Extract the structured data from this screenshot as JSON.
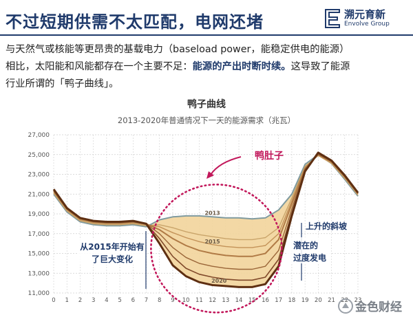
{
  "header": {
    "headline": "不过短期供需不太匹配，电网还堵",
    "brand_cn": "溯元育新",
    "brand_en": "Envolve Group"
  },
  "paragraph": {
    "line1": "与天然气或核能等更昂贵的基载电力（baseload  power，能稳定供电的能源）",
    "line2_a": "相比，太阳能和风能都存在一个主要不足：",
    "line2_em": "能源的产出时断时续。",
    "line2_b": "这导致了能源",
    "line3": "行业所谓的「鸭子曲线」。"
  },
  "footer": {
    "watermark": "金色财经"
  },
  "colors": {
    "headline": "#1f3a6b",
    "fill_band": "#f2d49b",
    "line_2020": "#5e2f12",
    "line_2013": "#7f9a9f",
    "dotted_circle": "#c2185b",
    "callout_arrow": "#c2185b",
    "grid": "#cfcfcf"
  },
  "chart_data": {
    "type": "line",
    "title": "鸭子曲线",
    "subtitle": "2013-2020年普通情况下一天的能源需求（兆瓦）",
    "xlabel": "",
    "ylabel": "",
    "ylim": [
      11000,
      27000
    ],
    "y_ticks": [
      "11,000",
      "13,000",
      "15,000",
      "17,000",
      "19,000",
      "21,000",
      "23,000",
      "25,000",
      "27,000"
    ],
    "x": [
      0,
      1,
      2,
      3,
      4,
      5,
      6,
      7,
      8,
      9,
      10,
      11,
      12,
      13,
      14,
      15,
      16,
      17,
      18,
      19,
      20,
      21,
      22,
      23
    ],
    "x_tick_labels": [
      "0",
      "1",
      "2",
      "3",
      "4",
      "5",
      "6",
      "7",
      "8",
      "9",
      "10",
      "11",
      "12",
      "13",
      "14",
      "15",
      "16",
      "17",
      "18",
      "19",
      "20",
      "21",
      "22",
      "23"
    ],
    "grid": true,
    "series": [
      {
        "name": "2013",
        "values": [
          21000,
          19200,
          18200,
          17900,
          17800,
          17800,
          17900,
          17700,
          18400,
          18700,
          18800,
          18800,
          18700,
          18600,
          18600,
          18500,
          18600,
          19400,
          21000,
          24000,
          25000,
          24100,
          22500,
          20800
        ]
      },
      {
        "name": "",
        "values": [
          21100,
          19300,
          18300,
          18000,
          17900,
          17900,
          18000,
          17800,
          17900,
          17600,
          17200,
          16900,
          16700,
          16500,
          16400,
          16400,
          16600,
          17600,
          20600,
          23800,
          24900,
          24100,
          22600,
          20900
        ]
      },
      {
        "name": "",
        "values": [
          21200,
          19400,
          18400,
          18100,
          18000,
          18000,
          18100,
          17900,
          17700,
          17100,
          16600,
          16200,
          15900,
          15700,
          15600,
          15600,
          15800,
          17000,
          20300,
          23700,
          24950,
          24200,
          22700,
          21000
        ]
      },
      {
        "name": "2015",
        "values": [
          21300,
          19500,
          18500,
          18200,
          18100,
          18100,
          18200,
          18000,
          17400,
          16500,
          15800,
          15300,
          15000,
          14800,
          14700,
          14700,
          15000,
          16400,
          20000,
          23600,
          25000,
          24250,
          22750,
          21050
        ]
      },
      {
        "name": "",
        "values": [
          21400,
          19500,
          18500,
          18200,
          18100,
          18100,
          18200,
          18000,
          17000,
          15600,
          14600,
          14000,
          13700,
          13500,
          13400,
          13400,
          13700,
          15300,
          19500,
          23500,
          25050,
          24300,
          22800,
          21100
        ]
      },
      {
        "name": "",
        "values": [
          21400,
          19600,
          18600,
          18300,
          18200,
          18200,
          18300,
          18000,
          16500,
          14700,
          13500,
          12900,
          12600,
          12400,
          12300,
          12300,
          12600,
          14400,
          19100,
          23400,
          25100,
          24350,
          22850,
          21100
        ]
      },
      {
        "name": "2020",
        "values": [
          21500,
          19600,
          18600,
          18300,
          18200,
          18200,
          18300,
          18000,
          16000,
          13800,
          12700,
          12100,
          11800,
          11700,
          11600,
          11600,
          11900,
          13700,
          18800,
          23300,
          25200,
          24400,
          22900,
          21150
        ]
      }
    ],
    "annotations": {
      "belly": "鸭肚子",
      "change": [
        "从2015年开始有",
        "了巨大变化"
      ],
      "ramp": "上升的斜坡",
      "overgen": [
        "潜在的",
        "过度发电"
      ]
    }
  }
}
